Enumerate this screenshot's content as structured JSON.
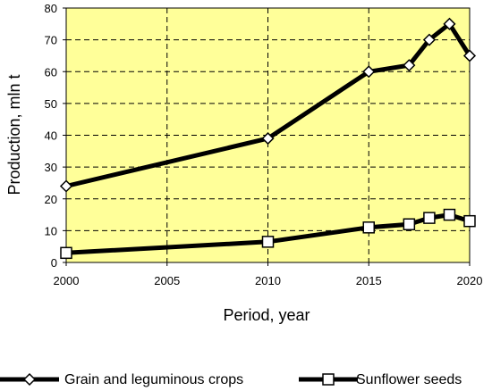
{
  "chart_data": {
    "type": "line",
    "title": "",
    "xlabel": "Period, year",
    "ylabel": "Production, mln t",
    "xlim": [
      2000,
      2020
    ],
    "ylim": [
      0,
      80
    ],
    "x_ticks": [
      2000,
      2005,
      2010,
      2015,
      2020
    ],
    "y_ticks": [
      0,
      10,
      20,
      30,
      40,
      50,
      60,
      70,
      80
    ],
    "grid": true,
    "legend_position": "bottom",
    "colors": {
      "plot_background": "#FFFF99",
      "grid": "#000000",
      "line": "#000000",
      "marker_fill": "#FFFFFF"
    },
    "series": [
      {
        "name": "Grain and leguminous crops",
        "marker": "diamond",
        "x": [
          2000,
          2010,
          2015,
          2017,
          2018,
          2019,
          2020
        ],
        "values": [
          24,
          39,
          60,
          62,
          70,
          75,
          65
        ]
      },
      {
        "name": "Sunflower seeds",
        "marker": "square",
        "x": [
          2000,
          2010,
          2015,
          2017,
          2018,
          2019,
          2020
        ],
        "values": [
          3,
          6.5,
          11,
          12,
          14,
          15,
          13
        ]
      }
    ]
  }
}
